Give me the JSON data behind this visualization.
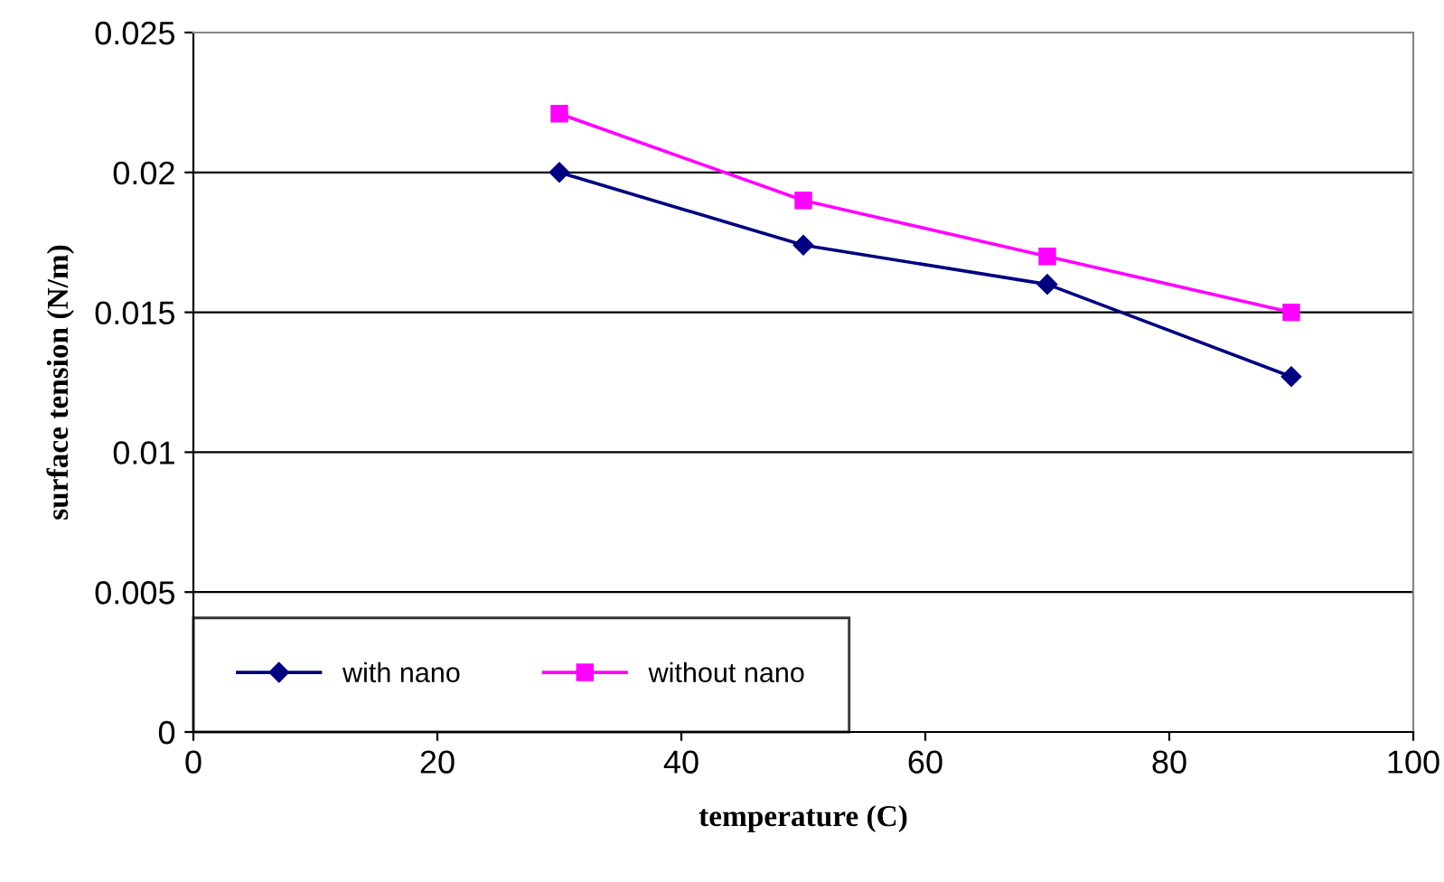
{
  "chart_data": {
    "type": "line",
    "xlabel": "temperature (C)",
    "ylabel": "surface tension (N/m)",
    "x": [
      30,
      50,
      70,
      90
    ],
    "series": [
      {
        "name": "with nano",
        "color": "#000080",
        "marker": "diamond",
        "values": [
          0.02,
          0.0174,
          0.016,
          0.0127
        ]
      },
      {
        "name": "without nano",
        "color": "#ff00ff",
        "marker": "square",
        "values": [
          0.0221,
          0.019,
          0.017,
          0.015
        ]
      }
    ],
    "xlim": [
      0,
      100
    ],
    "xticks": [
      0,
      20,
      40,
      60,
      80,
      100
    ],
    "ylim": [
      0,
      0.025
    ],
    "yticks": [
      0,
      0.005,
      0.01,
      0.015,
      0.02,
      0.025
    ],
    "grid": "y",
    "legend": "bottom left",
    "line_style": "solid"
  }
}
